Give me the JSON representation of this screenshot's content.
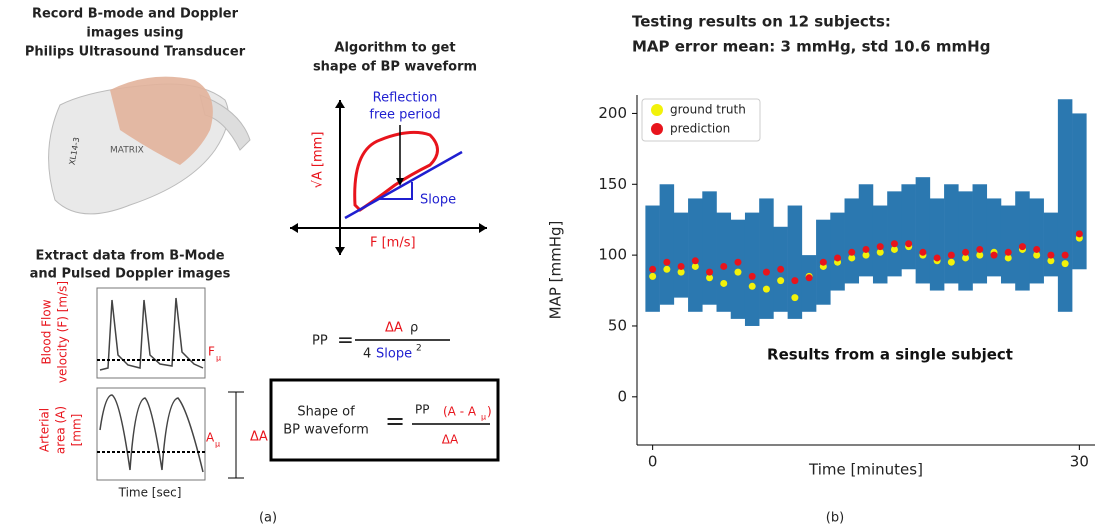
{
  "panel_a": {
    "record_title": [
      "Record B-mode and Doppler",
      "images using",
      "Philips Ultrasound Transducer"
    ],
    "transducer_model": "XL14-3",
    "transducer_brand": "MATRIX",
    "algorithm_title": [
      "Algorithm to get",
      "shape of BP waveform"
    ],
    "reflection": [
      "Reflection",
      "free period"
    ],
    "y_axis": "√A [mm]",
    "x_axis": "F [m/s]",
    "slope": "Slope",
    "extract_title": [
      "Extract data from B-Mode",
      "and Pulsed Doppler images"
    ],
    "flow_label": [
      "Blood Flow",
      "velocity (F) [m/s]"
    ],
    "area_label": [
      "Arterial",
      "area (A)",
      "[mm]"
    ],
    "f_mu": {
      "base": "F",
      "sub": "μ"
    },
    "a_mu": {
      "base": "A",
      "sub": "μ"
    },
    "delta_a": "ΔA",
    "time_label": "Time [sec]",
    "pp_formula": {
      "lhs": "PP",
      "eq": "=",
      "num_a": "ΔA",
      "num_b": "ρ",
      "den_a": "4",
      "den_b": "Slope",
      "den_exp": "2"
    },
    "shape_formula": {
      "lhs": [
        "Shape of",
        "BP waveform"
      ],
      "eq": "=",
      "num_a": "PP",
      "num_b": "(A - A",
      "num_sub": "μ",
      "num_c": ")",
      "den": "ΔA"
    },
    "caption": "(a)"
  },
  "chart_data": {
    "type": "scatter",
    "title": [
      "Testing results on 12 subjects:",
      "MAP error mean: 3 mmHg, std 10.6 mmHg"
    ],
    "xlabel": "Time [minutes]",
    "ylabel": "MAP [mmHg]",
    "annotation": "Results from a single subject",
    "xlim": [
      -1.1,
      31.1
    ],
    "ylim": [
      -34,
      213
    ],
    "xticks": [
      0,
      30
    ],
    "yticks": [
      0,
      50,
      100,
      150,
      200
    ],
    "legend": "upper left",
    "caption": "(b)",
    "band": {
      "color": "#2b78b0",
      "x": [
        0,
        1,
        2,
        3,
        4,
        5,
        6,
        7,
        8,
        9,
        10,
        11,
        12,
        13,
        14,
        15,
        16,
        17,
        18,
        19,
        20,
        21,
        22,
        23,
        24,
        25,
        26,
        27,
        28,
        29,
        30
      ],
      "upper": [
        135,
        150,
        130,
        140,
        145,
        130,
        125,
        130,
        140,
        120,
        135,
        100,
        125,
        130,
        140,
        150,
        135,
        145,
        150,
        155,
        140,
        150,
        145,
        150,
        140,
        135,
        145,
        140,
        130,
        210,
        200
      ],
      "lower": [
        60,
        65,
        70,
        60,
        65,
        60,
        55,
        50,
        55,
        60,
        55,
        60,
        65,
        75,
        80,
        85,
        80,
        85,
        90,
        80,
        75,
        80,
        75,
        80,
        85,
        80,
        75,
        80,
        85,
        60,
        90
      ]
    },
    "series": [
      {
        "name": "ground truth",
        "color": "#f2f20a",
        "x": [
          0,
          1,
          2,
          3,
          4,
          5,
          6,
          7,
          8,
          9,
          10,
          11,
          12,
          13,
          14,
          15,
          16,
          17,
          18,
          19,
          20,
          21,
          22,
          23,
          24,
          25,
          26,
          27,
          28,
          29,
          30
        ],
        "values": [
          85,
          90,
          88,
          92,
          84,
          80,
          88,
          78,
          76,
          82,
          70,
          85,
          92,
          95,
          98,
          100,
          102,
          104,
          106,
          100,
          96,
          95,
          98,
          100,
          102,
          98,
          104,
          100,
          96,
          94,
          112
        ]
      },
      {
        "name": "prediction",
        "color": "#e8141c",
        "x": [
          0,
          1,
          2,
          3,
          4,
          5,
          6,
          7,
          8,
          9,
          10,
          11,
          12,
          13,
          14,
          15,
          16,
          17,
          18,
          19,
          20,
          21,
          22,
          23,
          24,
          25,
          26,
          27,
          28,
          29,
          30
        ],
        "values": [
          90,
          95,
          92,
          96,
          88,
          92,
          95,
          85,
          88,
          90,
          82,
          84,
          95,
          98,
          102,
          104,
          106,
          108,
          108,
          102,
          98,
          100,
          102,
          104,
          100,
          102,
          106,
          104,
          100,
          100,
          115
        ]
      }
    ]
  }
}
